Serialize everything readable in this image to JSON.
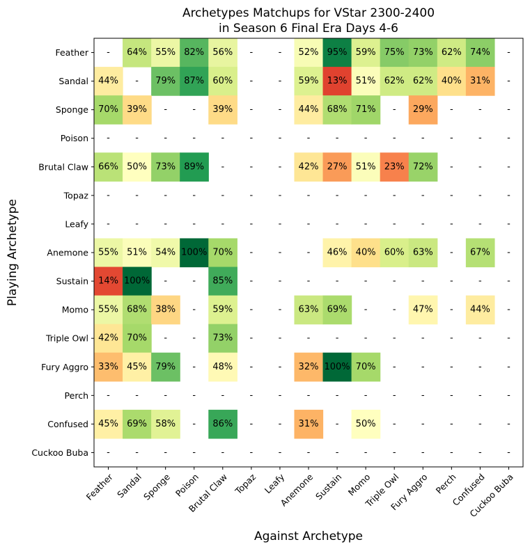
{
  "chart_data": {
    "type": "heatmap",
    "title_lines": [
      "Archetypes Matchups for VStar 2300-2400",
      "in Season 6 Final Era Days 4-6"
    ],
    "xlabel": "Against Archetype",
    "ylabel": "Playing Archetype",
    "x_categories": [
      "Feather",
      "Sandal",
      "Sponge",
      "Poison",
      "Brutal Claw",
      "Topaz",
      "Leafy",
      "Anemone",
      "Sustain",
      "Momo",
      "Triple Owl",
      "Fury Aggro",
      "Perch",
      "Confused",
      "Cuckoo Buba"
    ],
    "y_categories": [
      "Feather",
      "Sandal",
      "Sponge",
      "Poison",
      "Brutal Claw",
      "Topaz",
      "Leafy",
      "Anemone",
      "Sustain",
      "Momo",
      "Triple Owl",
      "Fury Aggro",
      "Perch",
      "Confused",
      "Cuckoo Buba"
    ],
    "missing_label": "-",
    "value_suffix": "%",
    "colormap": "RdYlGn",
    "value_range": [
      0,
      100
    ],
    "values": [
      [
        null,
        64,
        55,
        82,
        56,
        null,
        null,
        52,
        95,
        59,
        75,
        73,
        62,
        74,
        null
      ],
      [
        44,
        null,
        79,
        87,
        60,
        null,
        null,
        59,
        13,
        51,
        62,
        62,
        40,
        31,
        null
      ],
      [
        70,
        39,
        null,
        null,
        39,
        null,
        null,
        44,
        68,
        71,
        null,
        29,
        null,
        null,
        null
      ],
      [
        null,
        null,
        null,
        null,
        null,
        null,
        null,
        null,
        null,
        null,
        null,
        null,
        null,
        null,
        null
      ],
      [
        66,
        50,
        73,
        89,
        null,
        null,
        null,
        42,
        27,
        51,
        23,
        72,
        null,
        null,
        null
      ],
      [
        null,
        null,
        null,
        null,
        null,
        null,
        null,
        null,
        null,
        null,
        null,
        null,
        null,
        null,
        null
      ],
      [
        null,
        null,
        null,
        null,
        null,
        null,
        null,
        null,
        null,
        null,
        null,
        null,
        null,
        null,
        null
      ],
      [
        55,
        51,
        54,
        100,
        70,
        null,
        null,
        null,
        46,
        40,
        60,
        63,
        null,
        67,
        null
      ],
      [
        14,
        100,
        null,
        null,
        85,
        null,
        null,
        null,
        null,
        null,
        null,
        null,
        null,
        null,
        null
      ],
      [
        55,
        68,
        38,
        null,
        59,
        null,
        null,
        63,
        69,
        null,
        null,
        47,
        null,
        44,
        null
      ],
      [
        42,
        70,
        null,
        null,
        73,
        null,
        null,
        null,
        null,
        null,
        null,
        null,
        null,
        null,
        null
      ],
      [
        33,
        45,
        79,
        null,
        48,
        null,
        null,
        32,
        100,
        70,
        null,
        null,
        null,
        null,
        null
      ],
      [
        null,
        null,
        null,
        null,
        null,
        null,
        null,
        null,
        null,
        null,
        null,
        null,
        null,
        null,
        null
      ],
      [
        45,
        69,
        58,
        null,
        86,
        null,
        null,
        31,
        null,
        50,
        null,
        null,
        null,
        null,
        null
      ],
      [
        null,
        null,
        null,
        null,
        null,
        null,
        null,
        null,
        null,
        null,
        null,
        null,
        null,
        null,
        null
      ]
    ]
  }
}
